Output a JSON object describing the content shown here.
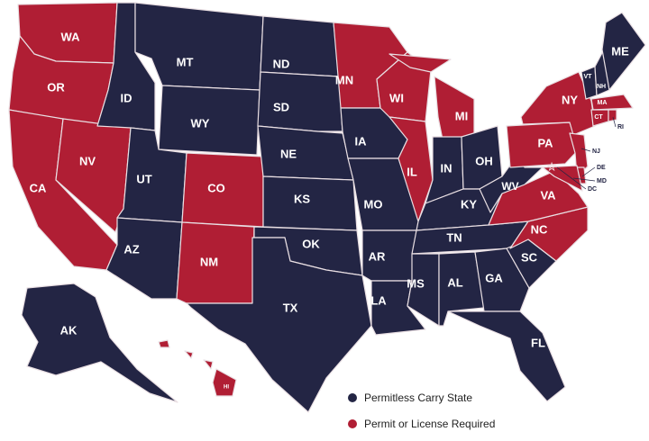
{
  "colors": {
    "permitless": "#232544",
    "permit": "#b01e34"
  },
  "legend": [
    {
      "key": "permitless",
      "label": "Permitless Carry State"
    },
    {
      "key": "permit",
      "label": "Permit or License Required"
    }
  ],
  "states": [
    {
      "code": "WA",
      "status": "permit"
    },
    {
      "code": "OR",
      "status": "permit"
    },
    {
      "code": "CA",
      "status": "permit"
    },
    {
      "code": "NV",
      "status": "permit"
    },
    {
      "code": "ID",
      "status": "permitless"
    },
    {
      "code": "MT",
      "status": "permitless"
    },
    {
      "code": "WY",
      "status": "permitless"
    },
    {
      "code": "UT",
      "status": "permitless"
    },
    {
      "code": "AZ",
      "status": "permitless"
    },
    {
      "code": "CO",
      "status": "permit"
    },
    {
      "code": "NM",
      "status": "permit"
    },
    {
      "code": "ND",
      "status": "permitless"
    },
    {
      "code": "SD",
      "status": "permitless"
    },
    {
      "code": "NE",
      "status": "permitless"
    },
    {
      "code": "KS",
      "status": "permitless"
    },
    {
      "code": "OK",
      "status": "permitless"
    },
    {
      "code": "TX",
      "status": "permitless"
    },
    {
      "code": "MN",
      "status": "permit"
    },
    {
      "code": "IA",
      "status": "permitless"
    },
    {
      "code": "MO",
      "status": "permitless"
    },
    {
      "code": "AR",
      "status": "permitless"
    },
    {
      "code": "LA",
      "status": "permitless"
    },
    {
      "code": "WI",
      "status": "permit"
    },
    {
      "code": "IL",
      "status": "permit"
    },
    {
      "code": "MI",
      "status": "permit"
    },
    {
      "code": "IN",
      "status": "permitless"
    },
    {
      "code": "OH",
      "status": "permitless"
    },
    {
      "code": "KY",
      "status": "permitless"
    },
    {
      "code": "TN",
      "status": "permitless"
    },
    {
      "code": "MS",
      "status": "permitless"
    },
    {
      "code": "AL",
      "status": "permitless"
    },
    {
      "code": "GA",
      "status": "permitless"
    },
    {
      "code": "FL",
      "status": "permitless"
    },
    {
      "code": "SC",
      "status": "permitless"
    },
    {
      "code": "NC",
      "status": "permit"
    },
    {
      "code": "VA",
      "status": "permit"
    },
    {
      "code": "WV",
      "status": "permitless"
    },
    {
      "code": "PA",
      "status": "permit"
    },
    {
      "code": "NY",
      "status": "permit"
    },
    {
      "code": "NJ",
      "status": "permit"
    },
    {
      "code": "DE",
      "status": "permit"
    },
    {
      "code": "MD",
      "status": "permit"
    },
    {
      "code": "DC",
      "status": "permit"
    },
    {
      "code": "VT",
      "status": "permitless"
    },
    {
      "code": "NH",
      "status": "permitless"
    },
    {
      "code": "ME",
      "status": "permitless"
    },
    {
      "code": "MA",
      "status": "permit"
    },
    {
      "code": "CT",
      "status": "permit"
    },
    {
      "code": "RI",
      "status": "permit"
    },
    {
      "code": "AK",
      "status": "permitless"
    },
    {
      "code": "HI",
      "status": "permit"
    }
  ]
}
